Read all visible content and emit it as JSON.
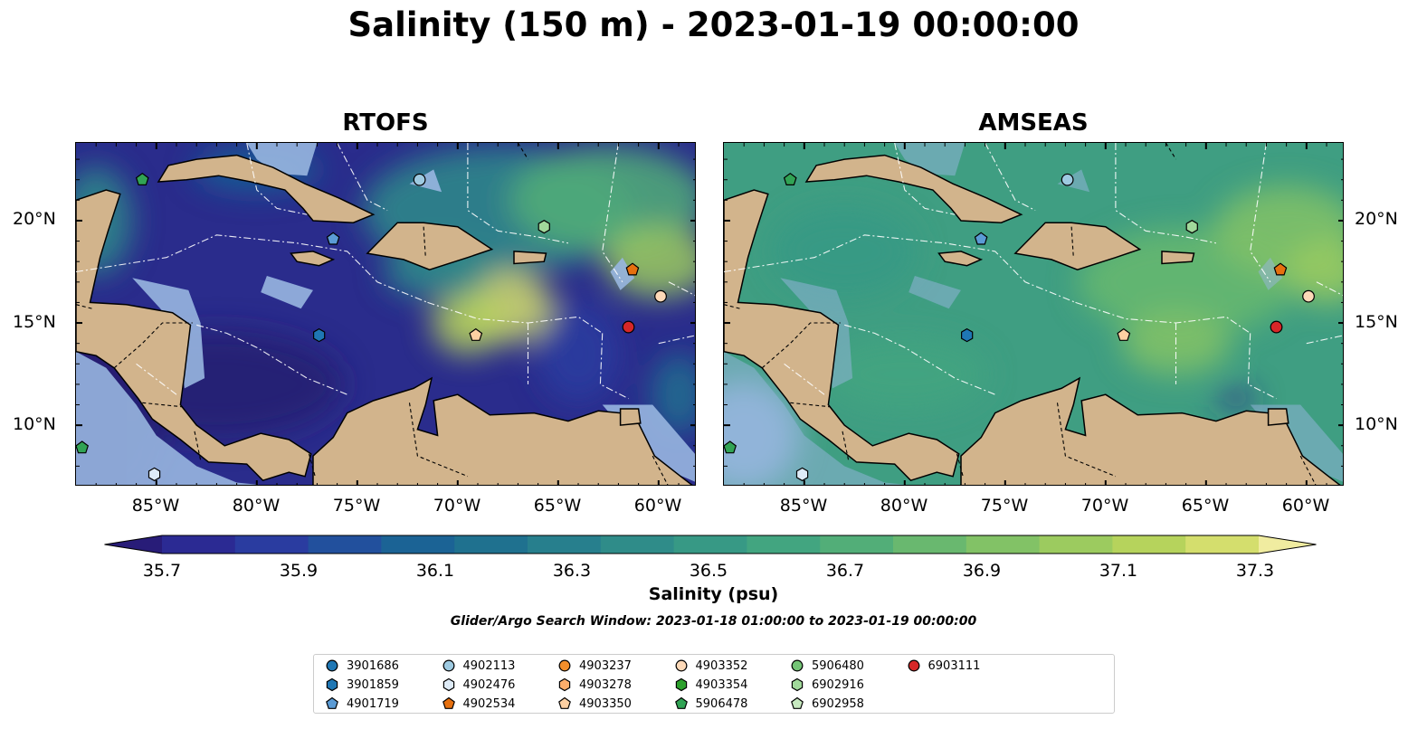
{
  "title": "Salinity (150 m) - 2023-01-19 00:00:00",
  "panels": [
    {
      "title": "RTOFS",
      "palette": "low"
    },
    {
      "title": "AMSEAS",
      "palette": "high"
    }
  ],
  "axes": {
    "lon_labels": [
      "85°W",
      "80°W",
      "75°W",
      "70°W",
      "65°W",
      "60°W"
    ],
    "lat_labels": [
      "20°N",
      "15°N",
      "10°N"
    ]
  },
  "colorbar": {
    "title": "Salinity (psu)",
    "tick_labels": [
      "35.7",
      "35.9",
      "36.1",
      "36.3",
      "36.5",
      "36.7",
      "36.9",
      "37.1",
      "37.3"
    ],
    "colors": [
      "#281c78",
      "#2b2a93",
      "#2a3ca0",
      "#22509d",
      "#1b6395",
      "#1f718f",
      "#277f8d",
      "#2f8c89",
      "#379985",
      "#42a580",
      "#52ae78",
      "#69b86f",
      "#82c266",
      "#9ccb5f",
      "#b6d35c",
      "#d4de6d",
      "#f0eca0"
    ]
  },
  "search_window": "Glider/Argo Search Window: 2023-01-18 01:00:00 to 2023-01-19 00:00:00",
  "legend": [
    {
      "id": "3901686",
      "color": "#1f77b4",
      "shape": "circle"
    },
    {
      "id": "3901859",
      "color": "#1f77b4",
      "shape": "hexagon"
    },
    {
      "id": "4901719",
      "color": "#5b9bd5",
      "shape": "pentagon"
    },
    {
      "id": "4902113",
      "color": "#9ecae1",
      "shape": "circle"
    },
    {
      "id": "4902476",
      "color": "#deebf7",
      "shape": "hexagon"
    },
    {
      "id": "4902534",
      "color": "#e6700f",
      "shape": "pentagon"
    },
    {
      "id": "4903237",
      "color": "#f28e2b",
      "shape": "circle"
    },
    {
      "id": "4903278",
      "color": "#fdae6b",
      "shape": "hexagon"
    },
    {
      "id": "4903350",
      "color": "#fdd0a2",
      "shape": "pentagon"
    },
    {
      "id": "4903352",
      "color": "#fdd9b8",
      "shape": "circle"
    },
    {
      "id": "4903354",
      "color": "#2ca02c",
      "shape": "hexagon"
    },
    {
      "id": "5906478",
      "color": "#31a354",
      "shape": "pentagon"
    },
    {
      "id": "5906480",
      "color": "#74c476",
      "shape": "circle"
    },
    {
      "id": "6902916",
      "color": "#a1d99b",
      "shape": "hexagon"
    },
    {
      "id": "6902958",
      "color": "#c7e9c0",
      "shape": "pentagon"
    },
    {
      "id": "6903111",
      "color": "#d62728",
      "shape": "circle"
    }
  ],
  "map_colors": {
    "land": "#d2b48c",
    "shallow": "#98b6e0",
    "boundary": "#000000",
    "eez": "#ffffff"
  },
  "floats": [
    {
      "id": "5906478",
      "lon": -85.7,
      "lat": 22.0
    },
    {
      "id": "4902113",
      "lon": -71.9,
      "lat": 22.0
    },
    {
      "id": "4901719",
      "lon": -76.2,
      "lat": 19.1
    },
    {
      "id": "6902916",
      "lon": -65.7,
      "lat": 19.7
    },
    {
      "id": "4902534",
      "lon": -61.3,
      "lat": 17.6
    },
    {
      "id": "4903352",
      "lon": -59.9,
      "lat": 16.3
    },
    {
      "id": "3901859",
      "lon": -76.9,
      "lat": 14.4
    },
    {
      "id": "4903350",
      "lon": -69.1,
      "lat": 14.4
    },
    {
      "id": "6903111",
      "lon": -61.5,
      "lat": 14.8
    },
    {
      "id": "5906478",
      "lon": -88.7,
      "lat": 8.9
    },
    {
      "id": "4902476",
      "lon": -85.1,
      "lat": 7.6
    }
  ]
}
